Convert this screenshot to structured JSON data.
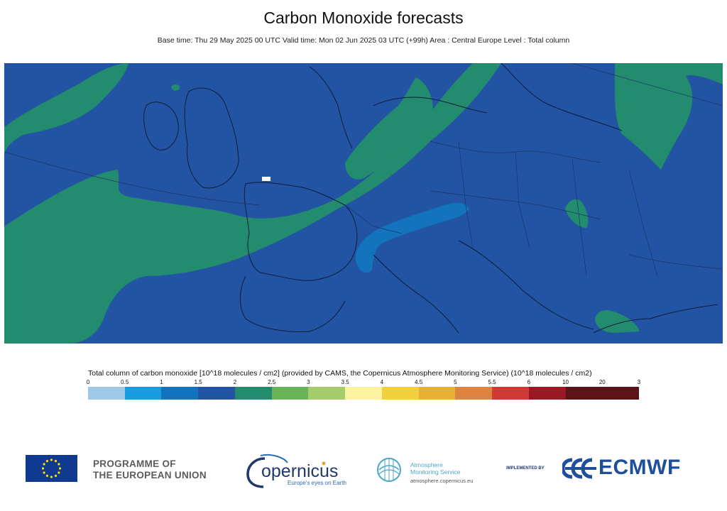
{
  "header": {
    "title": "Carbon Monoxide forecasts",
    "subtitle": "Base time: Thu 29 May 2025 00 UTC Valid time: Mon 02 Jun 2025 03 UTC (+99h) Area : Central Europe Level : Total column"
  },
  "map": {
    "background_color": "#2354a3",
    "region": "Central Europe"
  },
  "legend": {
    "title": "Total column of carbon monoxide [10^18 molecules / cm2] (provided by CAMS, the Copernicus Atmosphere Monitoring Service) (10^18 molecules / cm2)",
    "ticks": [
      "0",
      "0.5",
      "1",
      "1.5",
      "2",
      "2.5",
      "3",
      "3.5",
      "4",
      "4.5",
      "5",
      "5.5",
      "6",
      "10",
      "20",
      "3"
    ],
    "colors": [
      "#9fc8e8",
      "#1a9de0",
      "#1373bd",
      "#2354a3",
      "#238c6e",
      "#6bb358",
      "#a6cb6a",
      "#fbf3a0",
      "#f1d03e",
      "#e7b136",
      "#dd8442",
      "#cf3a36",
      "#9a1823",
      "#5a1418",
      "#5a1418"
    ]
  },
  "footer": {
    "eu_line1": "PROGRAMME OF",
    "eu_line2": "THE EUROPEAN UNION",
    "copernicus_word": "opernicus",
    "copernicus_tagline": "Europe's eyes on Earth",
    "cams_line1": "Atmosphere",
    "cams_line2": "Monitoring Service",
    "cams_url": "atmosphere.copernicus.eu",
    "implemented_by": "IMPLEMENTED BY",
    "ecmwf": "ECMWF"
  }
}
